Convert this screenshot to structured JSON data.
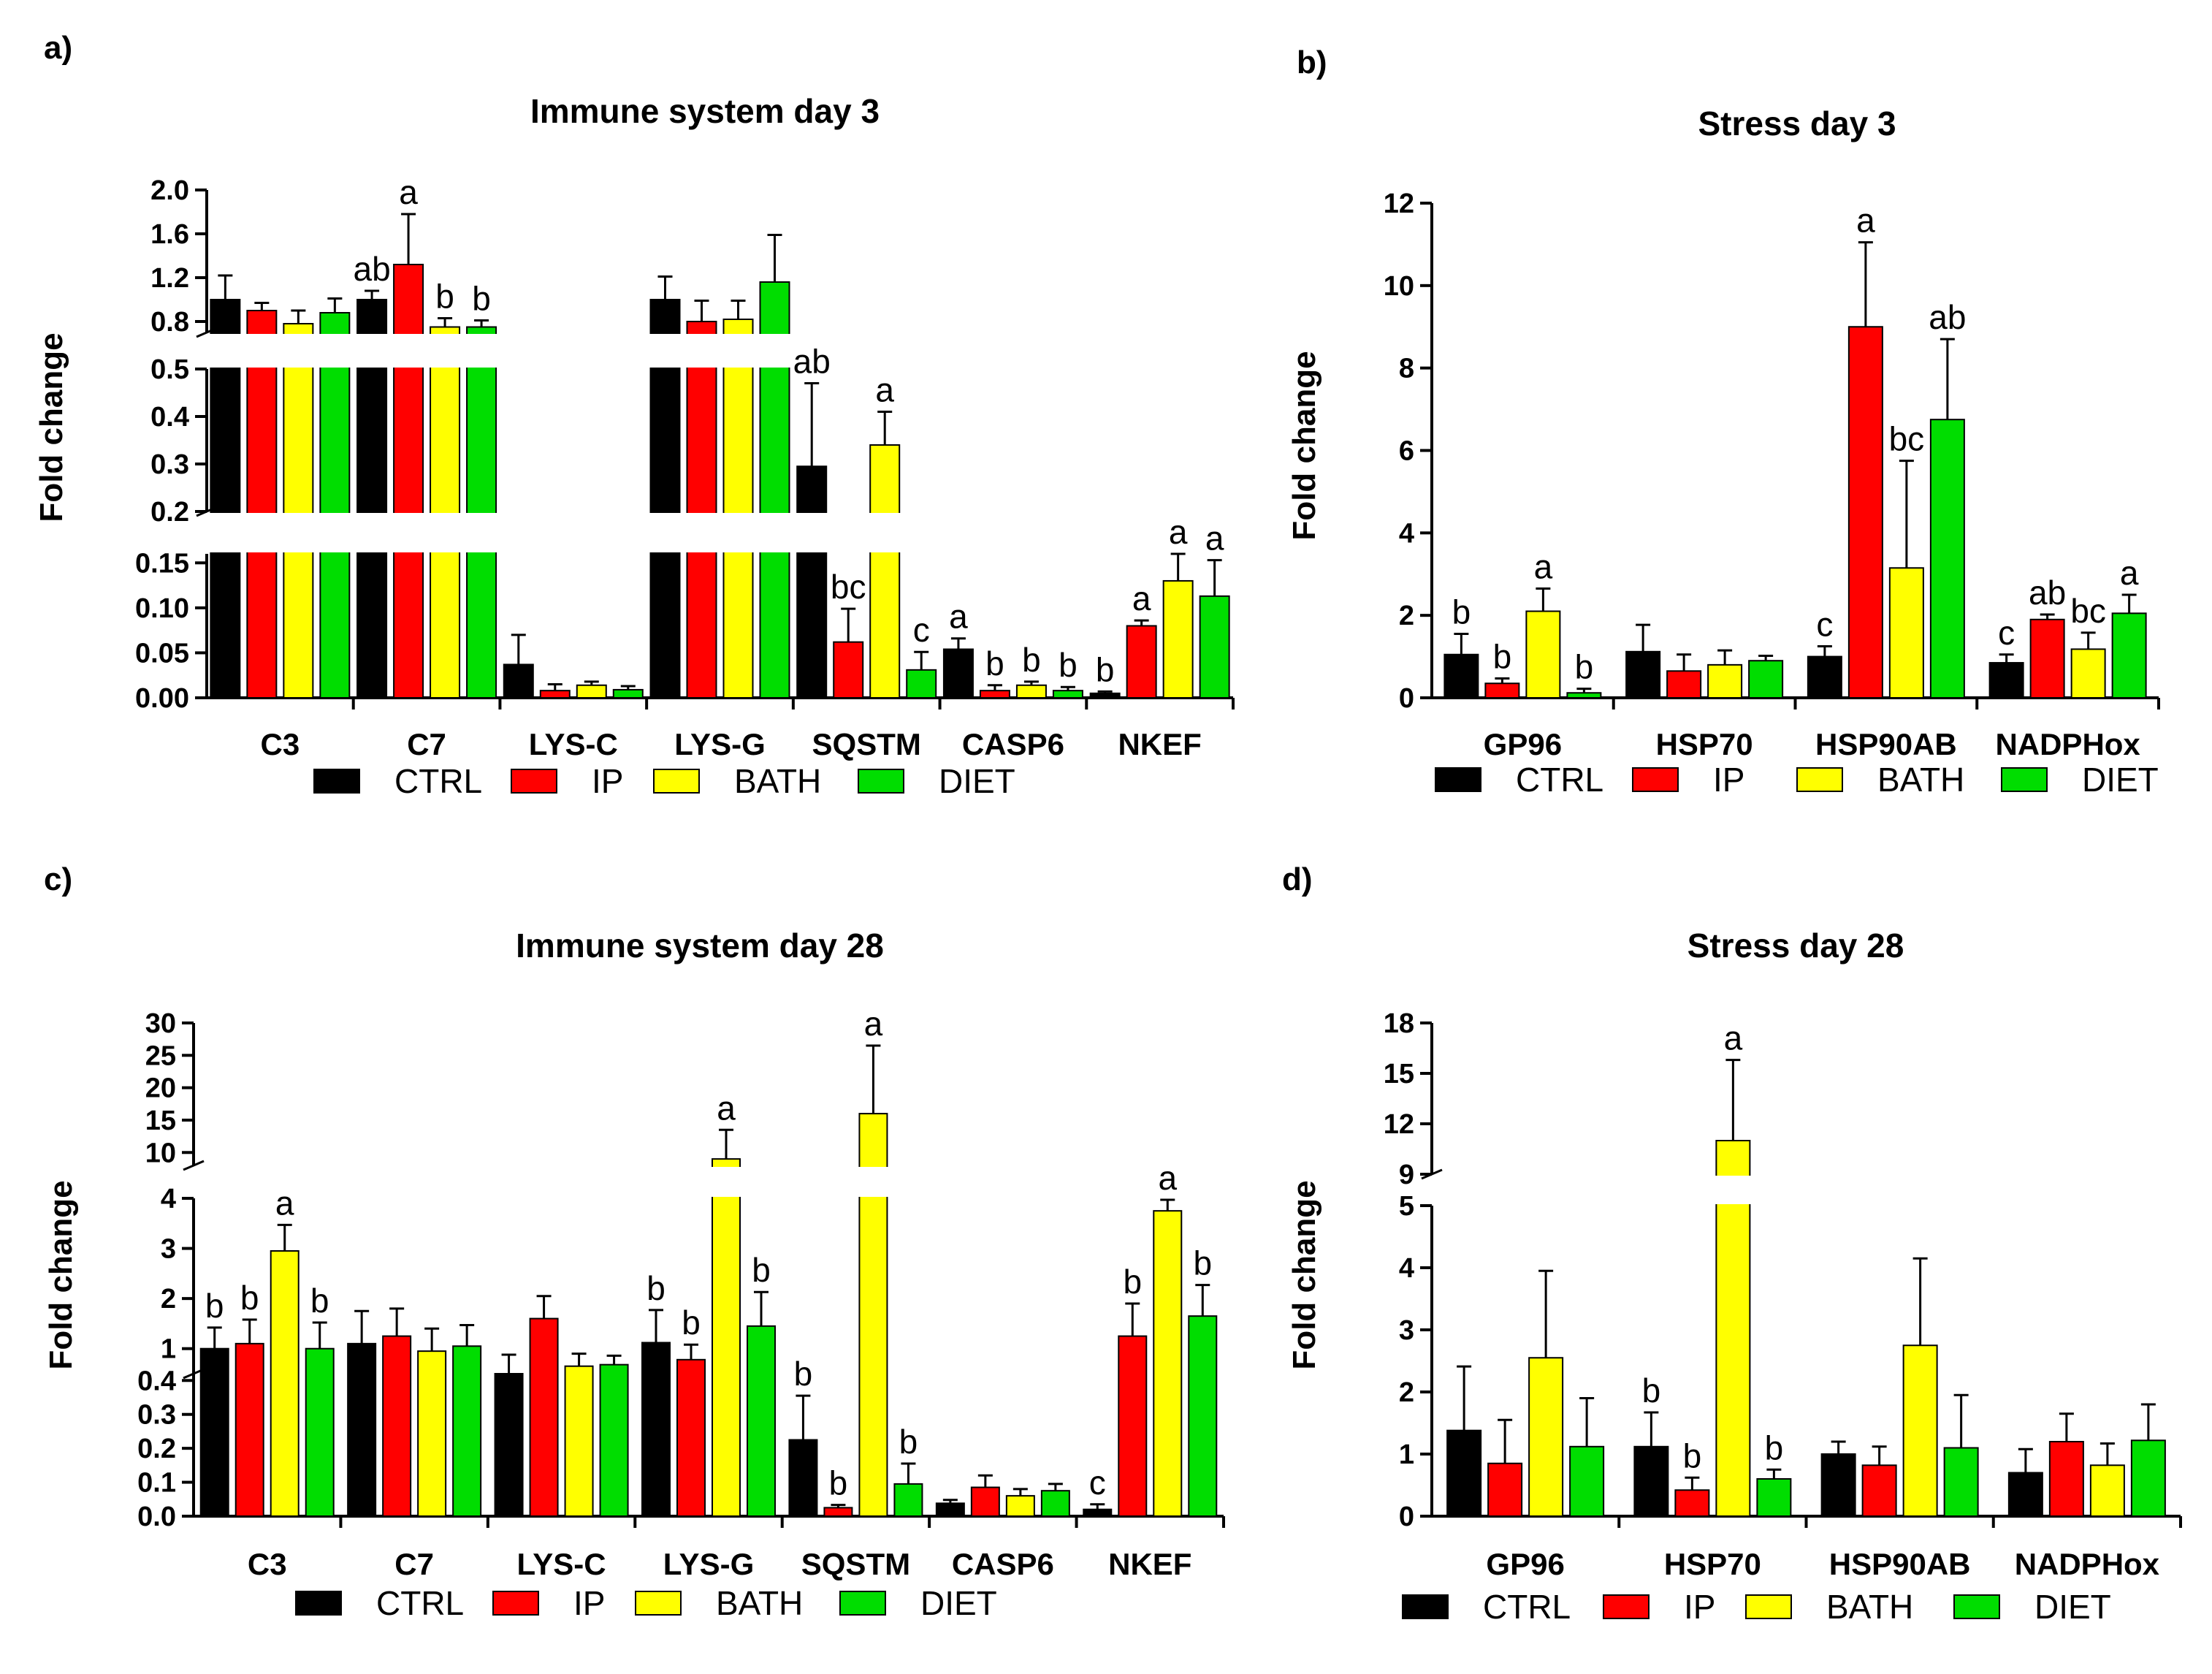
{
  "colors": {
    "CTRL": "#000000",
    "IP": "#ff0000",
    "BATH": "#ffff00",
    "DIET": "#00dd00"
  },
  "chart_data": [
    {
      "panel": "a)",
      "type": "bar",
      "title": "Immune system day 3",
      "ylabel": "Fold change",
      "categories": [
        "C3",
        "C7",
        "LYS-C",
        "LYS-G",
        "SQSTM",
        "CASP6",
        "NKEF"
      ],
      "series": [
        {
          "name": "CTRL",
          "values": [
            1.0,
            1.0,
            0.037,
            1.0,
            0.295,
            0.054,
            0.005
          ],
          "errors": [
            0.22,
            0.08,
            0.033,
            0.21,
            0.175,
            0.012,
            0.002
          ],
          "letters": [
            "",
            "ab",
            "",
            "",
            "ab",
            "a",
            "b"
          ]
        },
        {
          "name": "IP",
          "values": [
            0.9,
            1.32,
            0.008,
            0.8,
            0.062,
            0.008,
            0.08
          ],
          "errors": [
            0.07,
            0.46,
            0.007,
            0.19,
            0.037,
            0.006,
            0.006
          ],
          "letters": [
            "",
            "a",
            "",
            "",
            "bc",
            "b",
            "a"
          ]
        },
        {
          "name": "BATH",
          "values": [
            0.78,
            0.75,
            0.014,
            0.82,
            0.34,
            0.014,
            0.13
          ],
          "errors": [
            0.12,
            0.08,
            0.004,
            0.17,
            0.07,
            0.004,
            0.03
          ],
          "letters": [
            "",
            "b",
            "",
            "",
            "a",
            "b",
            "a"
          ]
        },
        {
          "name": "DIET",
          "values": [
            0.88,
            0.75,
            0.009,
            1.16,
            0.031,
            0.008,
            0.113
          ],
          "errors": [
            0.13,
            0.06,
            0.004,
            0.43,
            0.02,
            0.004,
            0.04
          ],
          "letters": [
            "",
            "b",
            "",
            "",
            "c",
            "b",
            "a"
          ]
        }
      ],
      "y_segments": [
        {
          "range": [
            0,
            0.16
          ],
          "ticks": [
            "0.00",
            "0.05",
            "0.10",
            "0.15"
          ]
        },
        {
          "range": [
            0.2,
            0.5
          ],
          "ticks": [
            "0.2",
            "0.3",
            "0.4",
            "0.5"
          ]
        },
        {
          "range": [
            0.7,
            2.0
          ],
          "ticks": [
            "0.8",
            "1.2",
            "1.6",
            "2.0"
          ]
        }
      ],
      "legend": [
        "CTRL",
        "IP",
        "BATH",
        "DIET"
      ]
    },
    {
      "panel": "b)",
      "type": "bar",
      "title": "Stress day 3",
      "ylabel": "Fold change",
      "categories": [
        "GP96",
        "HSP70",
        "HSP90AB",
        "NADPHox"
      ],
      "series": [
        {
          "name": "CTRL",
          "values": [
            1.05,
            1.12,
            1.0,
            0.85
          ],
          "errors": [
            0.5,
            0.65,
            0.25,
            0.2
          ],
          "letters": [
            "b",
            "",
            "c",
            "c"
          ]
        },
        {
          "name": "IP",
          "values": [
            0.35,
            0.65,
            9.0,
            1.9
          ],
          "errors": [
            0.12,
            0.4,
            2.05,
            0.12
          ],
          "letters": [
            "b",
            "",
            "a",
            "ab"
          ]
        },
        {
          "name": "BATH",
          "values": [
            2.1,
            0.8,
            3.15,
            1.18
          ],
          "errors": [
            0.55,
            0.35,
            2.6,
            0.4
          ],
          "letters": [
            "a",
            "",
            "bc",
            "bc"
          ]
        },
        {
          "name": "DIET",
          "values": [
            0.12,
            0.9,
            6.75,
            2.05
          ],
          "errors": [
            0.1,
            0.12,
            1.95,
            0.45
          ],
          "letters": [
            "b",
            "",
            "ab",
            "a"
          ]
        }
      ],
      "y_segments": [
        {
          "range": [
            0,
            12
          ],
          "ticks": [
            "0",
            "2",
            "4",
            "6",
            "8",
            "10",
            "12"
          ]
        }
      ],
      "legend": [
        "CTRL",
        "IP",
        "BATH",
        "DIET"
      ]
    },
    {
      "panel": "c)",
      "type": "bar",
      "title": "Immune system day 28",
      "ylabel": "Fold change",
      "categories": [
        "C3",
        "C7",
        "LYS-C",
        "LYS-G",
        "SQSTM",
        "CASP6",
        "NKEF"
      ],
      "series": [
        {
          "name": "CTRL",
          "values": [
            1.0,
            1.1,
            0.5,
            1.12,
            0.225,
            0.038,
            0.02
          ],
          "errors": [
            0.42,
            0.65,
            0.38,
            0.65,
            0.13,
            0.01,
            0.015
          ],
          "letters": [
            "b",
            "",
            "",
            "b",
            "b",
            "",
            "c"
          ]
        },
        {
          "name": "IP",
          "values": [
            1.1,
            1.25,
            1.6,
            0.78,
            0.025,
            0.085,
            1.25
          ],
          "errors": [
            0.48,
            0.55,
            0.45,
            0.3,
            0.008,
            0.035,
            0.65
          ],
          "letters": [
            "b",
            "",
            "",
            "b",
            "b",
            "",
            "b"
          ]
        },
        {
          "name": "BATH",
          "values": [
            2.95,
            0.95,
            0.65,
            9.0,
            16.0,
            0.06,
            3.75
          ],
          "errors": [
            0.52,
            0.45,
            0.25,
            4.5,
            10.5,
            0.02,
            0.22
          ],
          "letters": [
            "a",
            "",
            "",
            "a",
            "a",
            "",
            "a"
          ]
        },
        {
          "name": "DIET",
          "values": [
            1.0,
            1.05,
            0.68,
            1.45,
            0.095,
            0.075,
            1.65
          ],
          "errors": [
            0.52,
            0.42,
            0.18,
            0.68,
            0.06,
            0.02,
            0.62
          ],
          "letters": [
            "b",
            "",
            "",
            "b",
            "b",
            "",
            "b"
          ]
        }
      ],
      "y_segments": [
        {
          "range": [
            0,
            0.42
          ],
          "ticks": [
            "0.0",
            "0.1",
            "0.2",
            "0.3",
            "0.4"
          ]
        },
        {
          "range": [
            0.5,
            4
          ],
          "ticks": [
            "1",
            "2",
            "3",
            "4"
          ]
        },
        {
          "range": [
            8,
            30
          ],
          "ticks": [
            "10",
            "15",
            "20",
            "25",
            "30"
          ]
        }
      ],
      "legend": [
        "CTRL",
        "IP",
        "BATH",
        "DIET"
      ]
    },
    {
      "panel": "d)",
      "type": "bar",
      "title": "Stress day 28",
      "ylabel": "Fold change",
      "categories": [
        "GP96",
        "HSP70",
        "HSP90AB",
        "NADPHox"
      ],
      "series": [
        {
          "name": "CTRL",
          "values": [
            1.38,
            1.12,
            1.0,
            0.7
          ],
          "errors": [
            1.03,
            0.55,
            0.2,
            0.38
          ],
          "letters": [
            "",
            "b",
            "",
            ""
          ]
        },
        {
          "name": "IP",
          "values": [
            0.85,
            0.42,
            0.82,
            1.2
          ],
          "errors": [
            0.7,
            0.2,
            0.3,
            0.45
          ],
          "letters": [
            "",
            "b",
            "",
            ""
          ]
        },
        {
          "name": "BATH",
          "values": [
            2.55,
            11.0,
            2.75,
            0.82
          ],
          "errors": [
            1.4,
            4.8,
            1.4,
            0.35
          ],
          "letters": [
            "",
            "a",
            "",
            ""
          ]
        },
        {
          "name": "DIET",
          "values": [
            1.12,
            0.6,
            1.1,
            1.22
          ],
          "errors": [
            0.78,
            0.15,
            0.85,
            0.58
          ],
          "letters": [
            "",
            "b",
            "",
            ""
          ]
        }
      ],
      "y_segments": [
        {
          "range": [
            0,
            5
          ],
          "ticks": [
            "0",
            "1",
            "2",
            "3",
            "4",
            "5"
          ]
        },
        {
          "range": [
            9,
            18
          ],
          "ticks": [
            "9",
            "12",
            "15",
            "18"
          ]
        }
      ],
      "legend": [
        "CTRL",
        "IP",
        "BATH",
        "DIET"
      ]
    }
  ]
}
